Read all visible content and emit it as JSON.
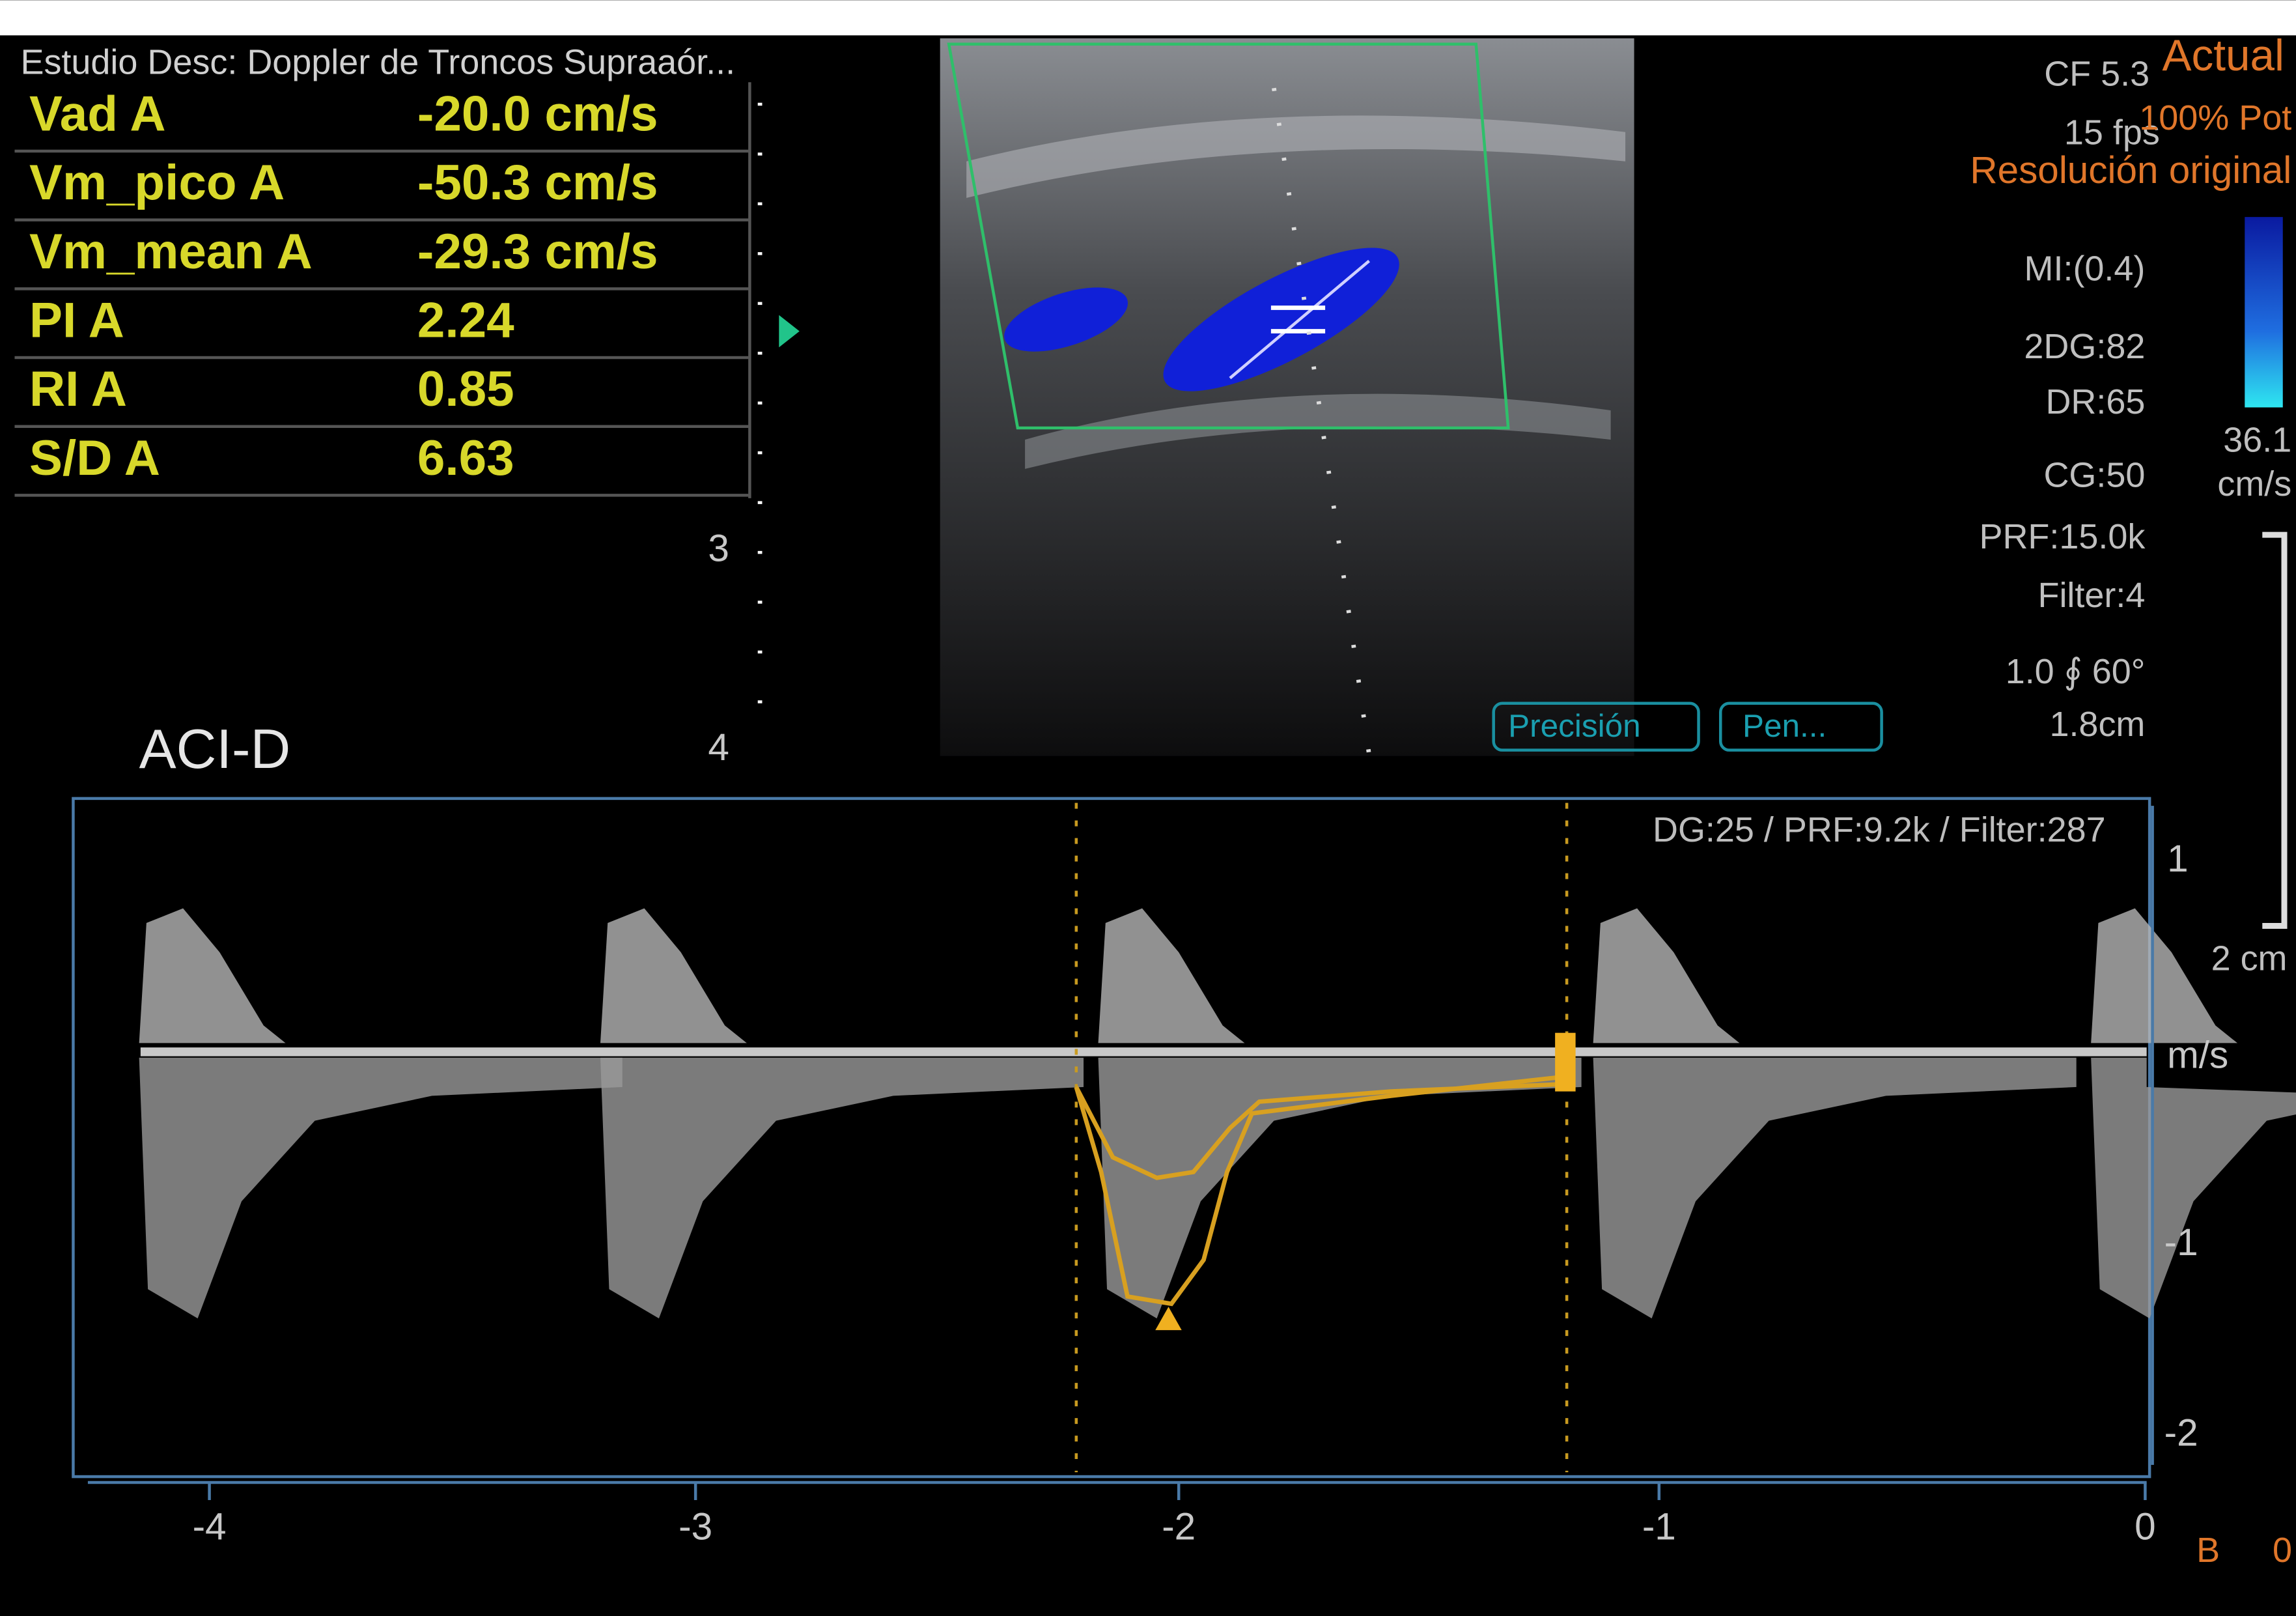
{
  "header": {
    "study": "Estudio Desc: Doppler de Troncos Supraaór..."
  },
  "measurements": [
    [
      "Vad A",
      "-20.0 cm/s"
    ],
    [
      "Vm_pico A",
      "-50.3 cm/s"
    ],
    [
      "Vm_mean A",
      "-29.3 cm/s"
    ],
    [
      "PI A",
      "2.24"
    ],
    [
      "RI A",
      "0.85"
    ],
    [
      "S/D A",
      "6.63"
    ]
  ],
  "depth_scale": [
    "3",
    "4"
  ],
  "right_panel": {
    "top": "Actual",
    "cf": "CF 5.3",
    "fps": "15 fps",
    "power": "100% Pot",
    "resolution": "Resolución original",
    "params": [
      "MI:(0.4)",
      "2DG:82",
      "DR:65",
      "CG:50",
      "PRF:15.0k",
      "Filter:4",
      "1.0 ∮ 60°",
      "1.8cm"
    ],
    "color_scale": "36.1",
    "color_unit": "cm/s",
    "distance": "2 cm"
  },
  "buttons": [
    "Precisión",
    "Pen..."
  ],
  "spectral": {
    "label": "ACI-D",
    "settings": "DG:25 /   PRF:9.2k   / Filter:287",
    "velocity_ticks": [
      "1",
      "-1",
      "-2"
    ],
    "velocity_unit": "m/s",
    "time_ticks": [
      "-4",
      "-3",
      "-2",
      "-1",
      "0"
    ]
  },
  "bottom_right": [
    "B",
    "0"
  ]
}
